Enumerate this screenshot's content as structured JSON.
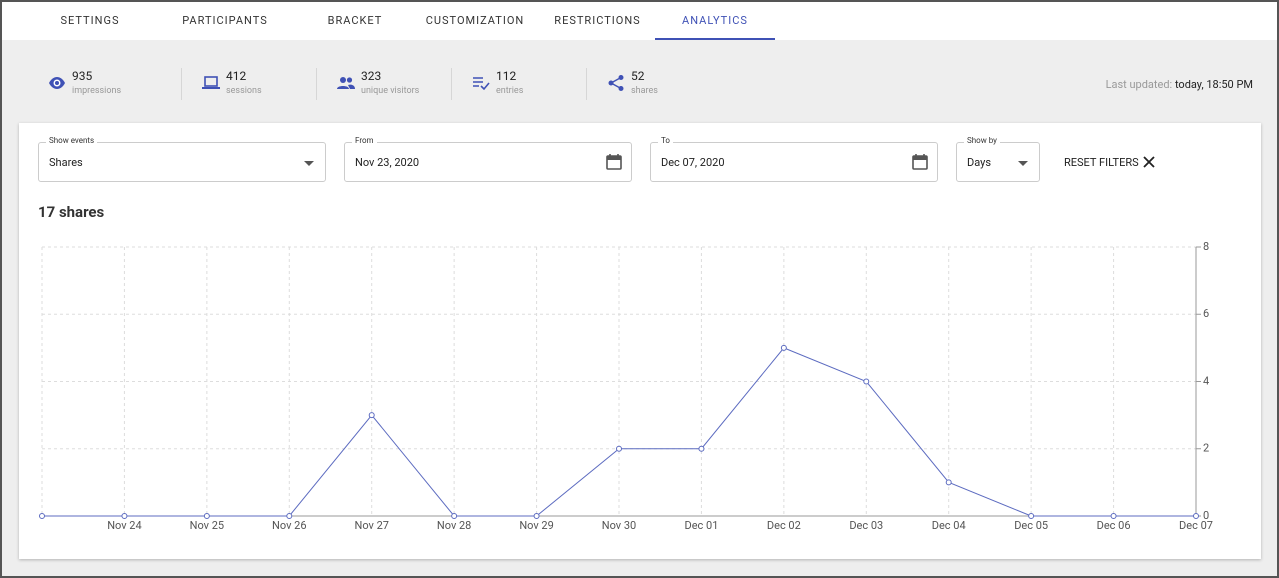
{
  "tabs": [
    "SETTINGS",
    "PARTICIPANTS",
    "BRACKET",
    "CUSTOMIZATION",
    "RESTRICTIONS",
    "ANALYTICS"
  ],
  "active_tab": 5,
  "stats": [
    {
      "value": "935",
      "label": "impressions"
    },
    {
      "value": "412",
      "label": "sessions"
    },
    {
      "value": "323",
      "label": "unique visitors"
    },
    {
      "value": "112",
      "label": "entries"
    },
    {
      "value": "52",
      "label": "shares"
    }
  ],
  "last_updated": {
    "label": "Last updated:",
    "value": "today, 18:50 PM"
  },
  "filters": {
    "show_events": {
      "label": "Show events",
      "value": "Shares"
    },
    "from": {
      "label": "From",
      "value": "Nov 23, 2020"
    },
    "to": {
      "label": "To",
      "value": "Dec 07, 2020"
    },
    "show_by": {
      "label": "Show by",
      "value": "Days"
    },
    "reset": "RESET FILTERS"
  },
  "chart_data": {
    "type": "line",
    "title": "17 shares",
    "categories": [
      null,
      "Nov 24",
      "Nov 25",
      "Nov 26",
      "Nov 27",
      "Nov 28",
      "Nov 29",
      "Nov 30",
      "Dec 01",
      "Dec 02",
      "Dec 03",
      "Dec 04",
      "Dec 05",
      "Dec 06",
      "Dec 07"
    ],
    "values": [
      0,
      0,
      0,
      0,
      3,
      0,
      0,
      2,
      2,
      5,
      4,
      1,
      0,
      0,
      0
    ],
    "color": "#5c6bc0",
    "ylim": [
      0,
      8
    ],
    "yticks": [
      0,
      2,
      4,
      6,
      8
    ],
    "grid": true,
    "y_axis_side": "right"
  }
}
